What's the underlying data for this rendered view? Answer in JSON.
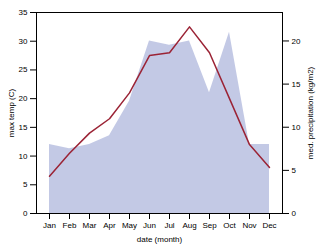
{
  "chart_data": {
    "type": "line",
    "categories": [
      "Jan",
      "Feb",
      "Mar",
      "Apr",
      "May",
      "Jun",
      "Jul",
      "Aug",
      "Sep",
      "Oct",
      "Nov",
      "Dec"
    ],
    "xlabel": "date (month)",
    "ylabel": "max temp (C)",
    "y2label": "med. precipitation (kg/m2)",
    "ylim": [
      0,
      35
    ],
    "yticks": [
      0,
      5,
      10,
      15,
      20,
      25,
      30,
      35
    ],
    "y2lim": [
      0,
      23.3
    ],
    "y2ticks": [
      0,
      5,
      10,
      15,
      20
    ],
    "series": [
      {
        "type": "area",
        "axis": "y2",
        "color": "#b8c0e0",
        "values": [
          8.0,
          7.5,
          8.0,
          9.0,
          13.0,
          20.0,
          19.5,
          20.0,
          14.0,
          21.0,
          8.0,
          8.0
        ]
      },
      {
        "type": "line",
        "color": "#9b2335",
        "values": [
          6.5,
          10.5,
          14.0,
          16.5,
          21.0,
          27.5,
          28.0,
          32.5,
          28.0,
          20.0,
          12.0,
          8.0
        ]
      }
    ]
  }
}
